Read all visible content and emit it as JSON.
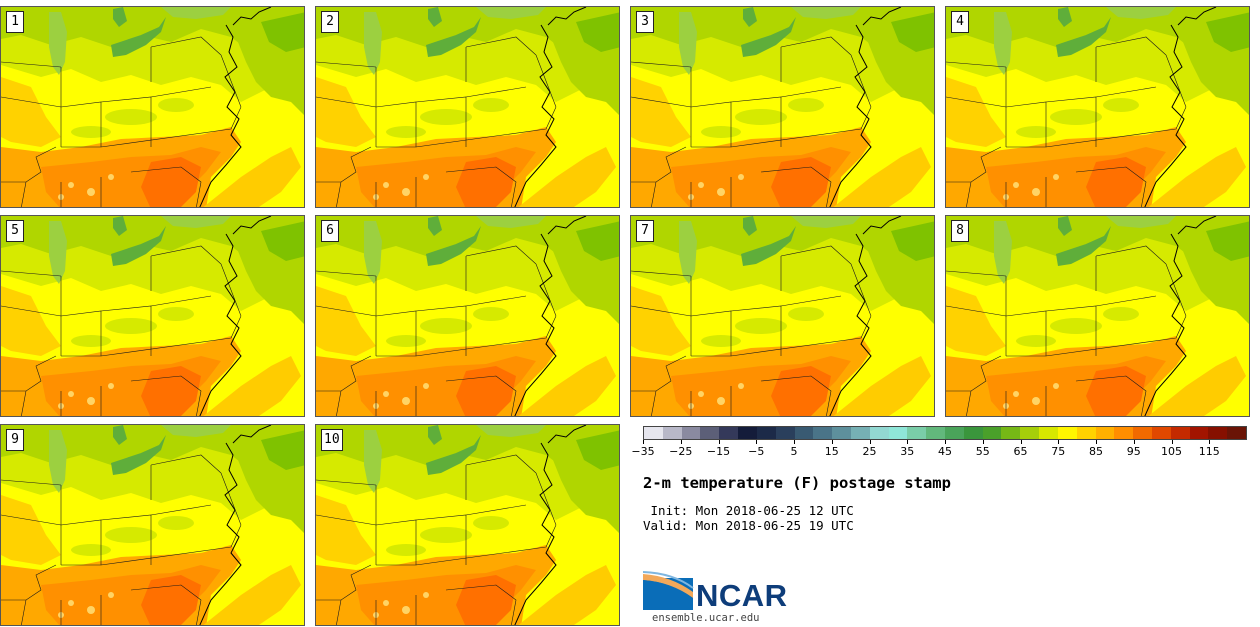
{
  "stamps": [
    {
      "label": "1"
    },
    {
      "label": "2"
    },
    {
      "label": "3"
    },
    {
      "label": "4"
    },
    {
      "label": "5"
    },
    {
      "label": "6"
    },
    {
      "label": "7"
    },
    {
      "label": "8"
    },
    {
      "label": "9"
    },
    {
      "label": "10"
    }
  ],
  "colorbar": {
    "colors": [
      "#e6e6ee",
      "#b8b8c8",
      "#8a8aa0",
      "#5c5f78",
      "#34395a",
      "#141c3a",
      "#1c2a48",
      "#2a3f5c",
      "#395a72",
      "#4a7488",
      "#5e909c",
      "#76b0b4",
      "#92d8d2",
      "#8fe6d8",
      "#7acda8",
      "#62b87c",
      "#4aa45a",
      "#3a963c",
      "#4aa02a",
      "#76b816",
      "#a6cf0a",
      "#d7e800",
      "#fff600",
      "#ffd200",
      "#ffb000",
      "#ff8e00",
      "#f26a00",
      "#e04800",
      "#c42a00",
      "#a21400",
      "#861000",
      "#6a1406"
    ],
    "tick_labels": [
      "−35",
      "−25",
      "−15",
      "−5",
      "5",
      "15",
      "25",
      "35",
      "45",
      "55",
      "65",
      "75",
      "85",
      "95",
      "105",
      "115"
    ]
  },
  "title": "2-m temperature (F) postage stamp",
  "init_line": " Init: Mon 2018-06-25 12 UTC",
  "valid_line": "Valid: Mon 2018-06-25 19 UTC",
  "logo": {
    "text": "NCAR",
    "url": "ensemble.ucar.edu"
  }
}
